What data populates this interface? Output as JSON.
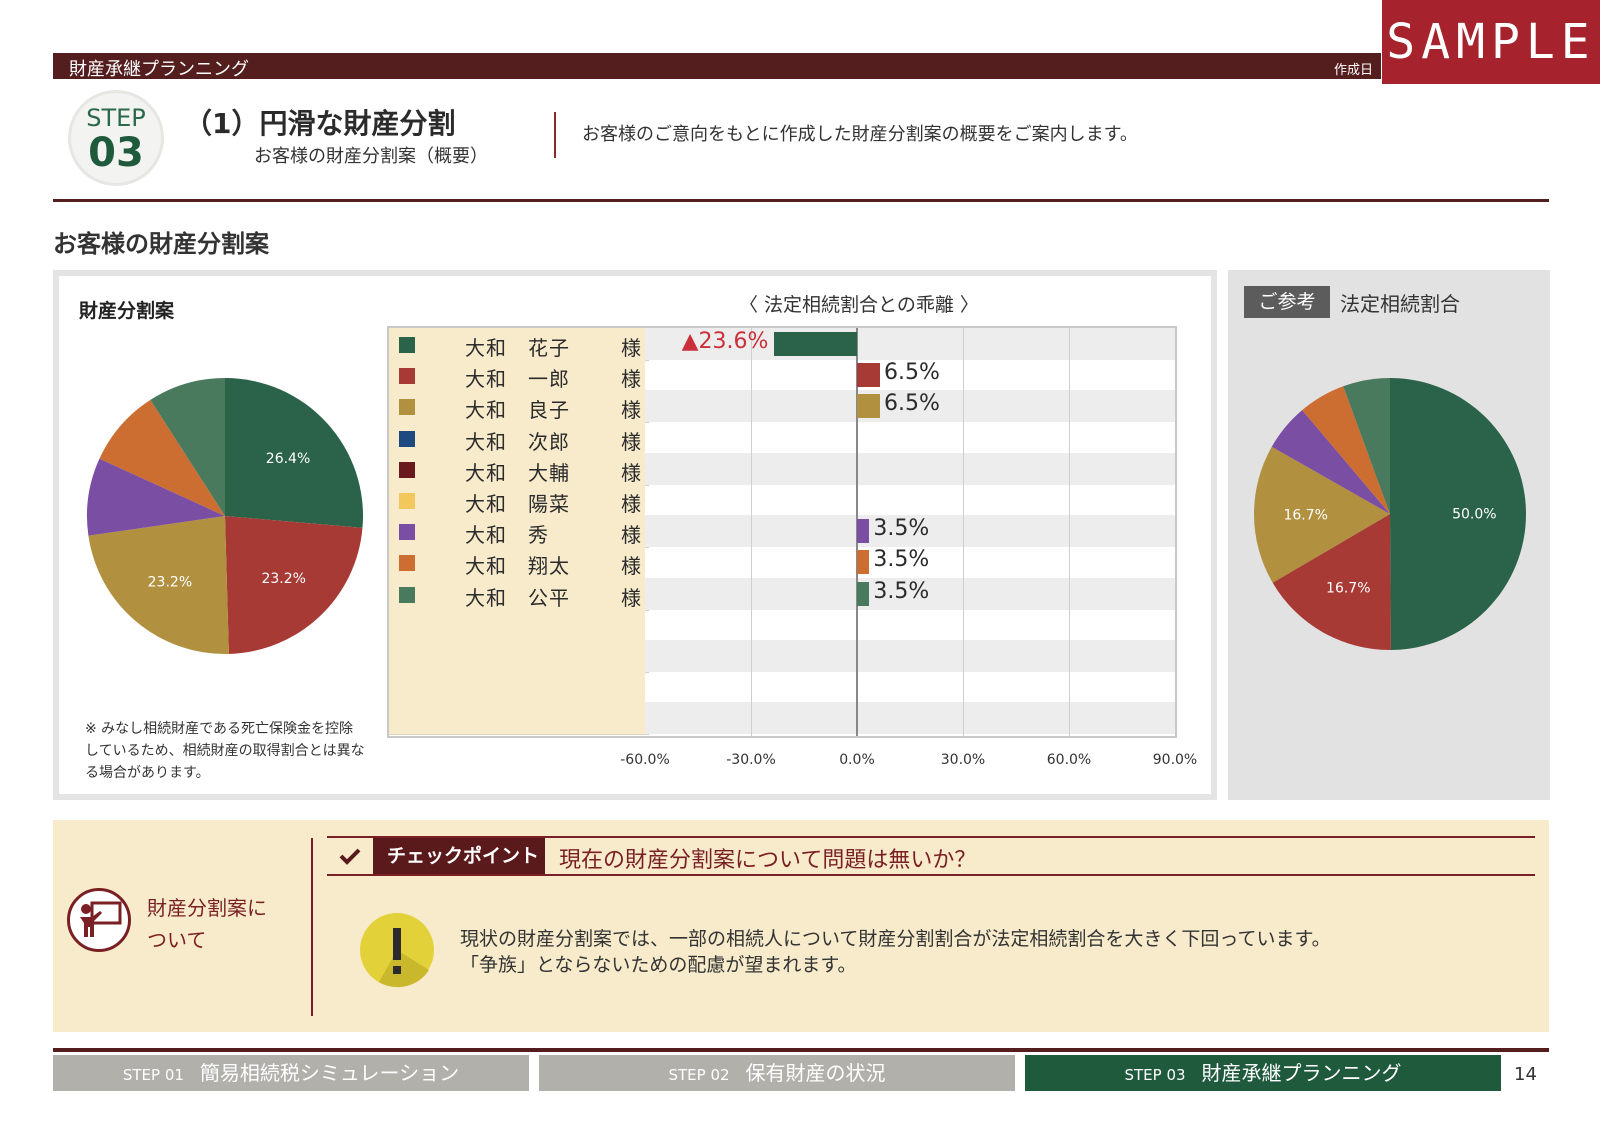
{
  "header": {
    "title": "財産承継プランニング",
    "date_label": "作成日",
    "sample": "SAMPLE"
  },
  "step": {
    "label": "STEP",
    "number": "03",
    "title": "（1）円滑な財産分割",
    "subtitle": "お客様の財産分割案（概要）",
    "description": "お客様のご意向をもとに作成した財産分割案の概要をご案内します。"
  },
  "section_title": "お客様の財産分割案",
  "main": {
    "title": "財産分割案",
    "note": "※ みなし相続財産である死亡保険金を控除しているため、相続財産の取得割合とは異なる場合があります。",
    "deviation_title": "〈 法定相続割合との乖離 〉"
  },
  "reference": {
    "tag": "ご参考",
    "title": "法定相続割合"
  },
  "colors": {
    "hanako": "#2a6349",
    "ichiro": "#a83a36",
    "ryoko": "#b19040",
    "jiro": "#1f4a80",
    "daisuke": "#6a1a1f",
    "haruna": "#f2c75c",
    "shu": "#7a4ea3",
    "shota": "#cc6d32",
    "kohei": "#4a7a5e"
  },
  "chart_data": [
    {
      "type": "pie",
      "title": "財産分割案",
      "labels": [
        "大和 花子",
        "大和 一郎",
        "大和 良子",
        "大和 秀",
        "大和 翔太",
        "大和 公平"
      ],
      "values": [
        26.4,
        23.2,
        23.2,
        9.1,
        9.1,
        9.1
      ],
      "value_labels": [
        "26.4%",
        "23.2%",
        "23.2%",
        "",
        "",
        ""
      ],
      "colors": [
        "#2a6349",
        "#a83a36",
        "#b19040",
        "#7a4ea3",
        "#cc6d32",
        "#4a7a5e"
      ]
    },
    {
      "type": "bar",
      "orientation": "horizontal",
      "title": "〈 法定相続割合との乖離 〉",
      "categories": [
        {
          "name": "大和　花子",
          "suffix": "様",
          "color": "#2a6349"
        },
        {
          "name": "大和　一郎",
          "suffix": "様",
          "color": "#a83a36"
        },
        {
          "name": "大和　良子",
          "suffix": "様",
          "color": "#b19040"
        },
        {
          "name": "大和　次郎",
          "suffix": "様",
          "color": "#1f4a80"
        },
        {
          "name": "大和　大輔",
          "suffix": "様",
          "color": "#6a1a1f"
        },
        {
          "name": "大和　陽菜",
          "suffix": "様",
          "color": "#f2c75c"
        },
        {
          "name": "大和　秀",
          "suffix": "様",
          "color": "#7a4ea3"
        },
        {
          "name": "大和　翔太",
          "suffix": "様",
          "color": "#cc6d32"
        },
        {
          "name": "大和　公平",
          "suffix": "様",
          "color": "#4a7a5e"
        }
      ],
      "values": [
        -23.6,
        6.5,
        6.5,
        0,
        0,
        0,
        3.5,
        3.5,
        3.5
      ],
      "value_labels": [
        "▲23.6%",
        "6.5%",
        "6.5%",
        "",
        "",
        "",
        "3.5%",
        "3.5%",
        "3.5%"
      ],
      "empty_rows": 4,
      "xlim": [
        -60,
        90
      ],
      "xticks": [
        "-60.0%",
        "-30.0%",
        "0.0%",
        "30.0%",
        "60.0%",
        "90.0%"
      ],
      "grid": true
    },
    {
      "type": "pie",
      "title": "法定相続割合",
      "labels": [
        "大和 花子",
        "大和 一郎",
        "大和 良子",
        "大和 秀",
        "大和 翔太",
        "大和 公平"
      ],
      "values": [
        50.0,
        16.7,
        16.7,
        5.6,
        5.6,
        5.6
      ],
      "value_labels": [
        "50.0%",
        "16.7%",
        "16.7%",
        "",
        "",
        ""
      ],
      "colors": [
        "#2a6349",
        "#a83a36",
        "#b19040",
        "#7a4ea3",
        "#cc6d32",
        "#4a7a5e"
      ]
    }
  ],
  "checkpoint": {
    "topic_line1": "財産分割案に",
    "topic_line2": "ついて",
    "label": "チェックポイント",
    "question": "現在の財産分割案について問題は無いか？",
    "advice_line1": "現状の財産分割案では、一部の相続人について財産分割割合が法定相続割合を大きく下回っています。",
    "advice_line2": "「争族」とならないための配慮が望まれます。"
  },
  "footer": {
    "tabs": [
      {
        "step": "STEP 01",
        "label": "簡易相続税シミュレーション",
        "active": false
      },
      {
        "step": "STEP 02",
        "label": "保有財産の状況",
        "active": false
      },
      {
        "step": "STEP 03",
        "label": "財産承継プランニング",
        "active": true
      }
    ],
    "page": "14"
  }
}
